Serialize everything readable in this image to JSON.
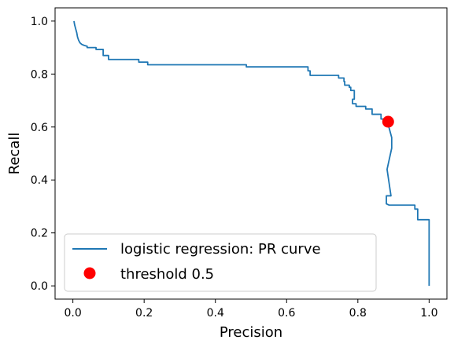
{
  "chart_data": {
    "type": "line",
    "xlabel": "Precision",
    "ylabel": "Recall",
    "xlim": [
      -0.05,
      1.05
    ],
    "ylim": [
      -0.05,
      1.05
    ],
    "xticks": [
      0.0,
      0.2,
      0.4,
      0.6,
      0.8,
      1.0
    ],
    "yticks": [
      0.0,
      0.2,
      0.4,
      0.6,
      0.8,
      1.0
    ],
    "xtick_labels": [
      "0.0",
      "0.2",
      "0.4",
      "0.6",
      "0.8",
      "1.0"
    ],
    "ytick_labels": [
      "0.0",
      "0.2",
      "0.4",
      "0.6",
      "0.8",
      "1.0"
    ],
    "grid": false,
    "legend_position": "lower-left",
    "series": [
      {
        "name": "logistic regression: PR curve",
        "color": "#1f77b4",
        "marker": "line",
        "x": [
          0.003,
          0.005,
          0.008,
          0.011,
          0.013,
          0.016,
          0.02,
          0.025,
          0.032,
          0.04,
          0.04,
          0.065,
          0.065,
          0.085,
          0.085,
          0.1,
          0.1,
          0.185,
          0.185,
          0.21,
          0.21,
          0.487,
          0.487,
          0.66,
          0.66,
          0.666,
          0.666,
          0.746,
          0.746,
          0.761,
          0.761,
          0.763,
          0.763,
          0.776,
          0.776,
          0.78,
          0.78,
          0.79,
          0.79,
          0.785,
          0.785,
          0.795,
          0.795,
          0.822,
          0.822,
          0.84,
          0.84,
          0.865,
          0.865,
          0.885,
          0.885,
          0.895,
          0.895,
          0.882,
          0.882,
          0.893,
          0.893,
          0.88,
          0.88,
          0.888,
          0.888,
          0.902,
          0.902,
          0.96,
          0.96,
          0.968,
          0.968,
          1.0,
          1.0
        ],
        "y": [
          1.0,
          0.985,
          0.97,
          0.955,
          0.94,
          0.928,
          0.918,
          0.912,
          0.908,
          0.905,
          0.9,
          0.9,
          0.893,
          0.893,
          0.87,
          0.87,
          0.855,
          0.855,
          0.845,
          0.845,
          0.835,
          0.835,
          0.827,
          0.827,
          0.812,
          0.812,
          0.795,
          0.795,
          0.785,
          0.785,
          0.772,
          0.772,
          0.758,
          0.758,
          0.75,
          0.75,
          0.738,
          0.738,
          0.705,
          0.705,
          0.688,
          0.688,
          0.678,
          0.678,
          0.668,
          0.668,
          0.648,
          0.648,
          0.63,
          0.63,
          0.61,
          0.56,
          0.52,
          0.44,
          0.44,
          0.34,
          0.34,
          0.34,
          0.31,
          0.305,
          0.305,
          0.305,
          0.305,
          0.305,
          0.29,
          0.29,
          0.25,
          0.25,
          0.0
        ]
      },
      {
        "name": "threshold 0.5",
        "color": "#ff0000",
        "marker": "circle",
        "x": [
          0.885
        ],
        "y": [
          0.62
        ]
      }
    ]
  }
}
